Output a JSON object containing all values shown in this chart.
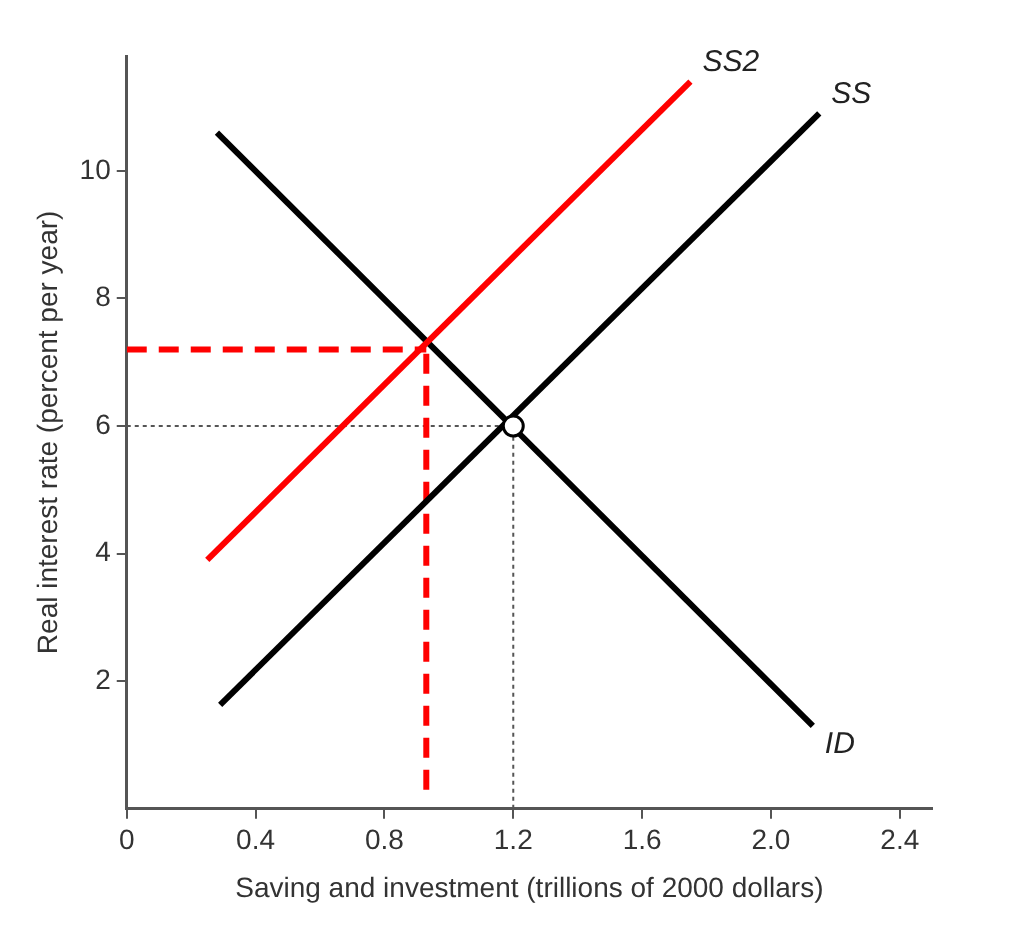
{
  "chart_data": {
    "type": "line",
    "xlabel": "Saving and investment (trillions of 2000 dollars)",
    "ylabel": "Real interest rate (percent per year)",
    "xlim": [
      0,
      2.5
    ],
    "ylim": [
      0,
      11.8
    ],
    "xticks": [
      0,
      0.4,
      0.8,
      1.2,
      1.6,
      {
        "value": 2,
        "label": "2.0"
      },
      2.4
    ],
    "yticks": [
      2,
      4,
      6,
      8,
      10
    ],
    "grid": false,
    "legend": false,
    "marker": "none",
    "series": [
      {
        "name": "SS2",
        "color": "#ff0000",
        "x": [
          0.25,
          1.75
        ],
        "values": [
          3.9,
          11.4
        ],
        "line_style": "solid"
      },
      {
        "name": "SS",
        "color": "#000000",
        "x": [
          0.29,
          2.15
        ],
        "values": [
          1.63,
          10.9
        ],
        "line_style": "solid"
      },
      {
        "name": "ID",
        "color": "#000000",
        "x": [
          0.28,
          2.13
        ],
        "values": [
          10.6,
          1.3
        ],
        "line_style": "solid"
      },
      {
        "color": "#ff0000",
        "x": [
          0,
          0.93
        ],
        "values": [
          7.2,
          7.2
        ],
        "line_style": "dashed"
      },
      {
        "color": "#ff0000",
        "x": [
          0.93,
          0.93
        ],
        "values": [
          0.3,
          7.2
        ],
        "line_style": "dashed"
      },
      {
        "color": "#555555",
        "x": [
          0,
          1.2
        ],
        "values": [
          6,
          6
        ],
        "line_style": "dotted"
      },
      {
        "color": "#555555",
        "x": [
          1.2,
          1.2
        ],
        "values": [
          0,
          6
        ],
        "line_style": "dotted"
      },
      {
        "type": "scatter",
        "color": "#ffffff",
        "x": [
          1.2
        ],
        "values": [
          6
        ],
        "marker": "circle"
      }
    ]
  }
}
